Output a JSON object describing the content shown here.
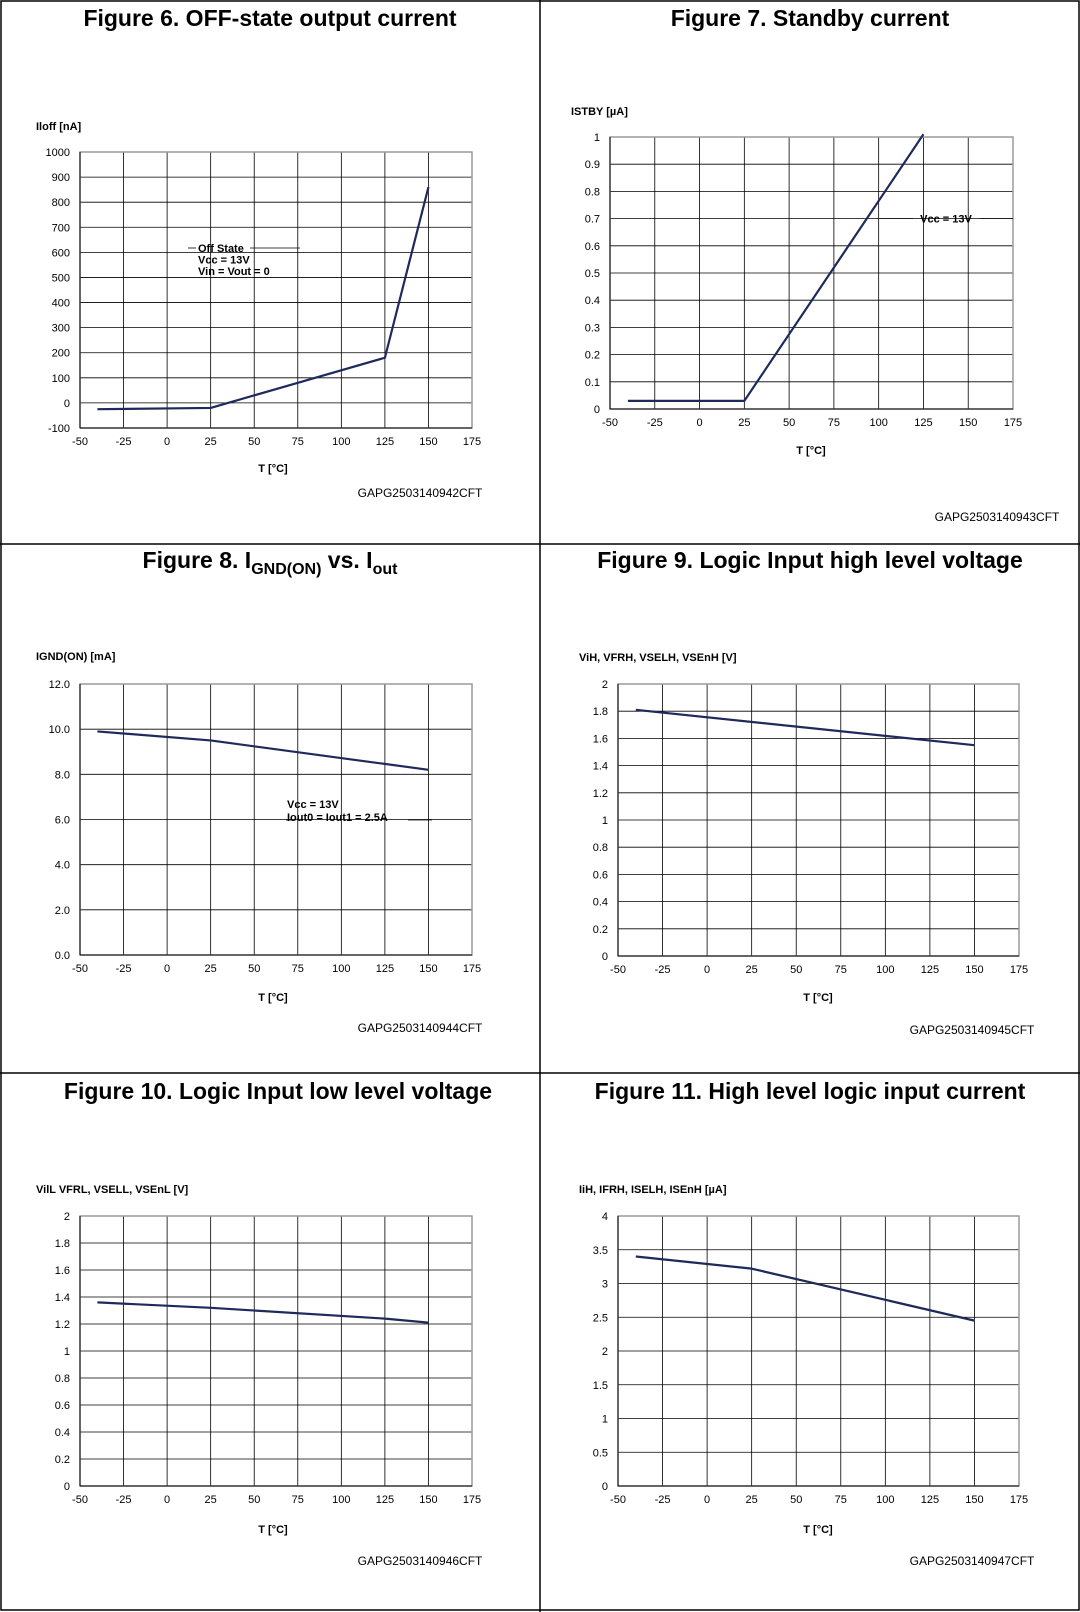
{
  "panels": [
    {
      "title": "Figure 6. OFF-state output current",
      "code": "GAPG2503140942CFT",
      "chart_data": {
        "type": "line",
        "ylabel": "Iloff [nA]",
        "xlabel": "T [°C]",
        "xlim": [
          -50,
          175
        ],
        "xticks": [
          "-50",
          "-25",
          "0",
          "25",
          "50",
          "75",
          "100",
          "125",
          "150",
          "175"
        ],
        "ylim": [
          -100,
          1000
        ],
        "yticks": [
          "-100",
          "0",
          "100",
          "200",
          "300",
          "400",
          "500",
          "600",
          "700",
          "800",
          "900",
          "1000"
        ],
        "grid": true,
        "series": [
          {
            "x": [
              -40,
              25,
              125,
              150
            ],
            "values": [
              -25,
              -20,
              180,
              860
            ]
          }
        ],
        "annotation": [
          "Off State",
          "Vcc = 13V",
          "Vin = Vout = 0"
        ]
      }
    },
    {
      "title": "Figure 7. Standby current",
      "code": "GAPG2503140943CFT",
      "chart_data": {
        "type": "line",
        "ylabel": "ISTBY [µA]",
        "xlabel": "T [°C]",
        "xlim": [
          -50,
          175
        ],
        "xticks": [
          "-50",
          "-25",
          "0",
          "25",
          "50",
          "75",
          "100",
          "125",
          "150",
          "175"
        ],
        "ylim": [
          0,
          1
        ],
        "yticks": [
          "0",
          "0.1",
          "0.2",
          "0.3",
          "0.4",
          "0.5",
          "0.6",
          "0.7",
          "0.8",
          "0.9",
          "1"
        ],
        "grid": true,
        "series": [
          {
            "x": [
              -40,
              25,
              125
            ],
            "values": [
              0.03,
              0.03,
              1.01
            ]
          }
        ],
        "annotation": [
          "Vcc = 13V"
        ]
      }
    },
    {
      "title_main": "Figure 8. I",
      "title_sub1": "GND(ON)",
      "title_mid": " vs. I",
      "title_sub2": "out",
      "code": "GAPG2503140944CFT",
      "chart_data": {
        "type": "line",
        "ylabel": "IGND(ON) [mA]",
        "xlabel": "T [°C]",
        "xlim": [
          -50,
          175
        ],
        "xticks": [
          "-50",
          "-25",
          "0",
          "25",
          "50",
          "75",
          "100",
          "125",
          "150",
          "175"
        ],
        "ylim": [
          0,
          12
        ],
        "yticks": [
          "0.0",
          "2.0",
          "4.0",
          "6.0",
          "8.0",
          "10.0",
          "12.0"
        ],
        "grid": true,
        "series": [
          {
            "x": [
              -40,
              25,
              150
            ],
            "values": [
              9.9,
              9.5,
              8.2
            ]
          }
        ],
        "annotation": [
          "Vcc = 13V",
          "Iout0 = Iout1 = 2.5A"
        ]
      }
    },
    {
      "title": "Figure 9. Logic Input high level voltage",
      "code": "GAPG2503140945CFT",
      "chart_data": {
        "type": "line",
        "ylabel": "ViH, VFRH, VSELH, VSEnH [V]",
        "xlabel": "T [°C]",
        "xlim": [
          -50,
          175
        ],
        "xticks": [
          "-50",
          "-25",
          "0",
          "25",
          "50",
          "75",
          "100",
          "125",
          "150",
          "175"
        ],
        "ylim": [
          0,
          2
        ],
        "yticks": [
          "0",
          "0.2",
          "0.4",
          "0.6",
          "0.8",
          "1",
          "1.2",
          "1.4",
          "1.6",
          "1.8",
          "2"
        ],
        "grid": true,
        "series": [
          {
            "x": [
              -40,
              150
            ],
            "values": [
              1.81,
              1.55
            ]
          }
        ]
      }
    },
    {
      "title": "Figure 10. Logic Input low level voltage",
      "code": "GAPG2503140946CFT",
      "chart_data": {
        "type": "line",
        "ylabel": "VilL VFRL, VSELL, VSEnL [V]",
        "xlabel": "T [°C]",
        "xlim": [
          -50,
          175
        ],
        "xticks": [
          "-50",
          "-25",
          "0",
          "25",
          "50",
          "75",
          "100",
          "125",
          "150",
          "175"
        ],
        "ylim": [
          0,
          2
        ],
        "yticks": [
          "0",
          "0.2",
          "0.4",
          "0.6",
          "0.8",
          "1",
          "1.2",
          "1.4",
          "1.6",
          "1.8",
          "2"
        ],
        "grid": true,
        "series": [
          {
            "x": [
              -40,
              25,
              125,
              150
            ],
            "values": [
              1.36,
              1.32,
              1.24,
              1.21
            ]
          }
        ]
      }
    },
    {
      "title": "Figure 11. High level logic input current",
      "code": "GAPG2503140947CFT",
      "chart_data": {
        "type": "line",
        "ylabel": "IiH, IFRH, ISELH, ISEnH [µA]",
        "xlabel": "T [°C]",
        "xlim": [
          -50,
          175
        ],
        "xticks": [
          "-50",
          "-25",
          "0",
          "25",
          "50",
          "75",
          "100",
          "125",
          "150",
          "175"
        ],
        "ylim": [
          0,
          4
        ],
        "yticks": [
          "0",
          "0.5",
          "1",
          "1.5",
          "2",
          "2.5",
          "3",
          "3.5",
          "4"
        ],
        "grid": true,
        "series": [
          {
            "x": [
              -40,
              25,
              150
            ],
            "values": [
              3.4,
              3.22,
              2.45
            ]
          }
        ]
      }
    }
  ],
  "style": {
    "line_color": "#1f2a5c",
    "grid_color": "#000000",
    "frame_color": "#9a9a9a"
  }
}
